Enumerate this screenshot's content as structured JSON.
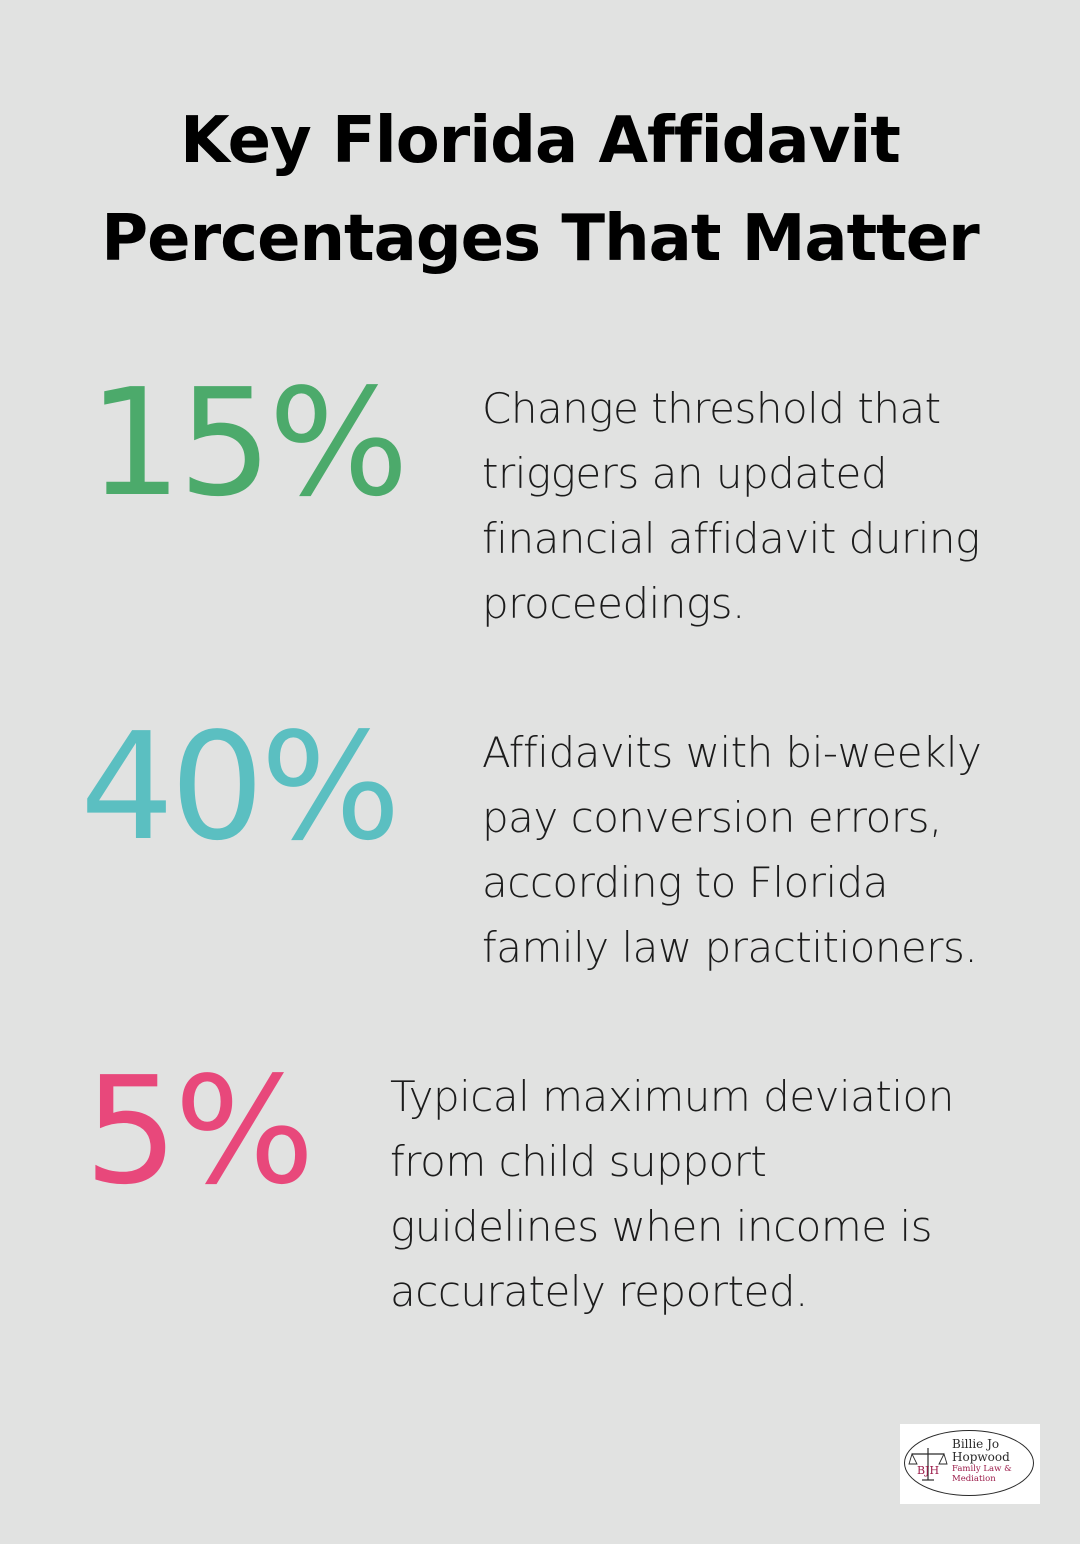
{
  "title": {
    "line1": "Key Florida Affidavit",
    "line2": "Percentages That Matter"
  },
  "stats": [
    {
      "value": "15%",
      "color": "#4caa6b",
      "lines": [
        "Change threshold that",
        "triggers an updated",
        "financial affidavit during",
        "proceedings."
      ]
    },
    {
      "value": "40%",
      "color": "#5bbfc1",
      "lines": [
        "Affidavits with bi-weekly",
        "pay conversion errors,",
        "according to Florida",
        "family law practitioners."
      ]
    },
    {
      "value": "5%",
      "color": "#e8487b",
      "lines": [
        "Typical maximum deviation",
        "from child support",
        "guidelines when income is",
        "accurately reported."
      ]
    }
  ],
  "logo": {
    "line1": "Billie Jo",
    "line2": "Hopwood",
    "line3": "Family Law &",
    "line4": "Mediation",
    "monogram": "BJH"
  }
}
